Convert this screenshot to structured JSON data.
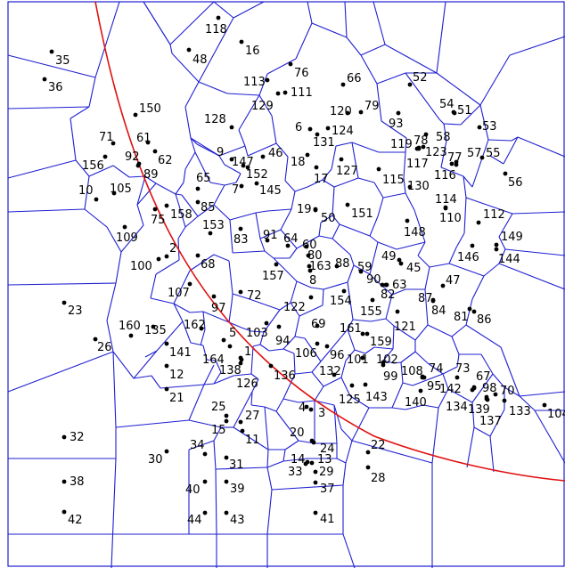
{
  "colors": {
    "edges": "#1f1fd2",
    "curve": "#e01010",
    "sites": "#000000",
    "background": "#ffffff"
  },
  "sites": [
    {
      "id": "1"
    },
    {
      "id": "2"
    },
    {
      "id": "3"
    },
    {
      "id": "4"
    },
    {
      "id": "5"
    },
    {
      "id": "6"
    },
    {
      "id": "7"
    },
    {
      "id": "8"
    },
    {
      "id": "9"
    },
    {
      "id": "10"
    },
    {
      "id": "11"
    },
    {
      "id": "12"
    },
    {
      "id": "13"
    },
    {
      "id": "14"
    },
    {
      "id": "15"
    },
    {
      "id": "16"
    },
    {
      "id": "17"
    },
    {
      "id": "18"
    },
    {
      "id": "19"
    },
    {
      "id": "20"
    },
    {
      "id": "21"
    },
    {
      "id": "22"
    },
    {
      "id": "23"
    },
    {
      "id": "24"
    },
    {
      "id": "25"
    },
    {
      "id": "26"
    },
    {
      "id": "27"
    },
    {
      "id": "28"
    },
    {
      "id": "29"
    },
    {
      "id": "30"
    },
    {
      "id": "31"
    },
    {
      "id": "32"
    },
    {
      "id": "33"
    },
    {
      "id": "34"
    },
    {
      "id": "35"
    },
    {
      "id": "36"
    },
    {
      "id": "37"
    },
    {
      "id": "38"
    },
    {
      "id": "39"
    },
    {
      "id": "40"
    },
    {
      "id": "41"
    },
    {
      "id": "42"
    },
    {
      "id": "43"
    },
    {
      "id": "44"
    },
    {
      "id": "45"
    },
    {
      "id": "46"
    },
    {
      "id": "47"
    },
    {
      "id": "48"
    },
    {
      "id": "49"
    },
    {
      "id": "50"
    },
    {
      "id": "51"
    },
    {
      "id": "52"
    },
    {
      "id": "53"
    },
    {
      "id": "54"
    },
    {
      "id": "55"
    },
    {
      "id": "56"
    },
    {
      "id": "57"
    },
    {
      "id": "58"
    },
    {
      "id": "59"
    },
    {
      "id": "60"
    },
    {
      "id": "61"
    },
    {
      "id": "62"
    },
    {
      "id": "63"
    },
    {
      "id": "64"
    },
    {
      "id": "65"
    },
    {
      "id": "66"
    },
    {
      "id": "67"
    },
    {
      "id": "68"
    },
    {
      "id": "69"
    },
    {
      "id": "70"
    },
    {
      "id": "71"
    },
    {
      "id": "72"
    },
    {
      "id": "73"
    },
    {
      "id": "74"
    },
    {
      "id": "75"
    },
    {
      "id": "76"
    },
    {
      "id": "77"
    },
    {
      "id": "78"
    },
    {
      "id": "79"
    },
    {
      "id": "80"
    },
    {
      "id": "81"
    },
    {
      "id": "82"
    },
    {
      "id": "83"
    },
    {
      "id": "84"
    },
    {
      "id": "85"
    },
    {
      "id": "86"
    },
    {
      "id": "87"
    },
    {
      "id": "88"
    },
    {
      "id": "89"
    },
    {
      "id": "90"
    },
    {
      "id": "91"
    },
    {
      "id": "92"
    },
    {
      "id": "93"
    },
    {
      "id": "94"
    },
    {
      "id": "95"
    },
    {
      "id": "96"
    },
    {
      "id": "97"
    },
    {
      "id": "98"
    },
    {
      "id": "99"
    },
    {
      "id": "100"
    },
    {
      "id": "101"
    },
    {
      "id": "102"
    },
    {
      "id": "103"
    },
    {
      "id": "104"
    },
    {
      "id": "105"
    },
    {
      "id": "106"
    },
    {
      "id": "107"
    },
    {
      "id": "108"
    },
    {
      "id": "109"
    },
    {
      "id": "110"
    },
    {
      "id": "111"
    },
    {
      "id": "112"
    },
    {
      "id": "113"
    },
    {
      "id": "114"
    },
    {
      "id": "115"
    },
    {
      "id": "116"
    },
    {
      "id": "117"
    },
    {
      "id": "118"
    },
    {
      "id": "119"
    },
    {
      "id": "120"
    },
    {
      "id": "121"
    },
    {
      "id": "122"
    },
    {
      "id": "123"
    },
    {
      "id": "124"
    },
    {
      "id": "125"
    },
    {
      "id": "126"
    },
    {
      "id": "127"
    },
    {
      "id": "128"
    },
    {
      "id": "129"
    },
    {
      "id": "130"
    },
    {
      "id": "131"
    },
    {
      "id": "132"
    },
    {
      "id": "133"
    },
    {
      "id": "134"
    },
    {
      "id": "135"
    },
    {
      "id": "136"
    },
    {
      "id": "137"
    },
    {
      "id": "138"
    },
    {
      "id": "139"
    },
    {
      "id": "140"
    },
    {
      "id": "141"
    },
    {
      "id": "142"
    },
    {
      "id": "143"
    },
    {
      "id": "144"
    },
    {
      "id": "145"
    },
    {
      "id": "146"
    },
    {
      "id": "147"
    },
    {
      "id": "148"
    },
    {
      "id": "149"
    },
    {
      "id": "150"
    },
    {
      "id": "151"
    },
    {
      "id": "152"
    },
    {
      "id": "153"
    },
    {
      "id": "154"
    },
    {
      "id": "155"
    },
    {
      "id": "156"
    },
    {
      "id": "157"
    },
    {
      "id": "158"
    },
    {
      "id": "159"
    },
    {
      "id": "160"
    },
    {
      "id": "161"
    },
    {
      "id": "162"
    },
    {
      "id": "163"
    },
    {
      "id": "164"
    }
  ]
}
